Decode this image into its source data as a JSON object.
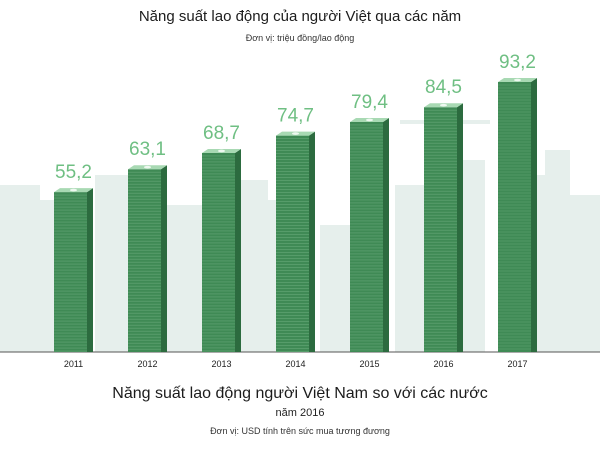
{
  "chart_data": {
    "type": "bar",
    "title": "Năng suất lao động của người Việt qua các năm",
    "unit": "Đơn vị: triệu đồng/lao động",
    "categories": [
      "2011",
      "2012",
      "2013",
      "2014",
      "2015",
      "2016",
      "2017"
    ],
    "values": [
      55.2,
      63.1,
      68.7,
      74.7,
      79.4,
      84.5,
      93.2
    ],
    "value_labels": [
      "55,2",
      "63,1",
      "68,7",
      "74,7",
      "79,4",
      "84,5",
      "93,2"
    ],
    "xlabel": "",
    "ylabel": "",
    "grid": false,
    "legend": "none",
    "colors": {
      "bar_front": "#3f8a55",
      "bar_side": "#2c6b3f",
      "bar_top": "#a8d9b3",
      "value_text": "#6fbf83",
      "skyline": "#e6efec"
    }
  },
  "next_section": {
    "title": "Năng suất lao động người Việt Nam so với các nước",
    "year": "năm  2016",
    "unit": "Đơn vị: USD tính trên sức mua tương đương"
  }
}
